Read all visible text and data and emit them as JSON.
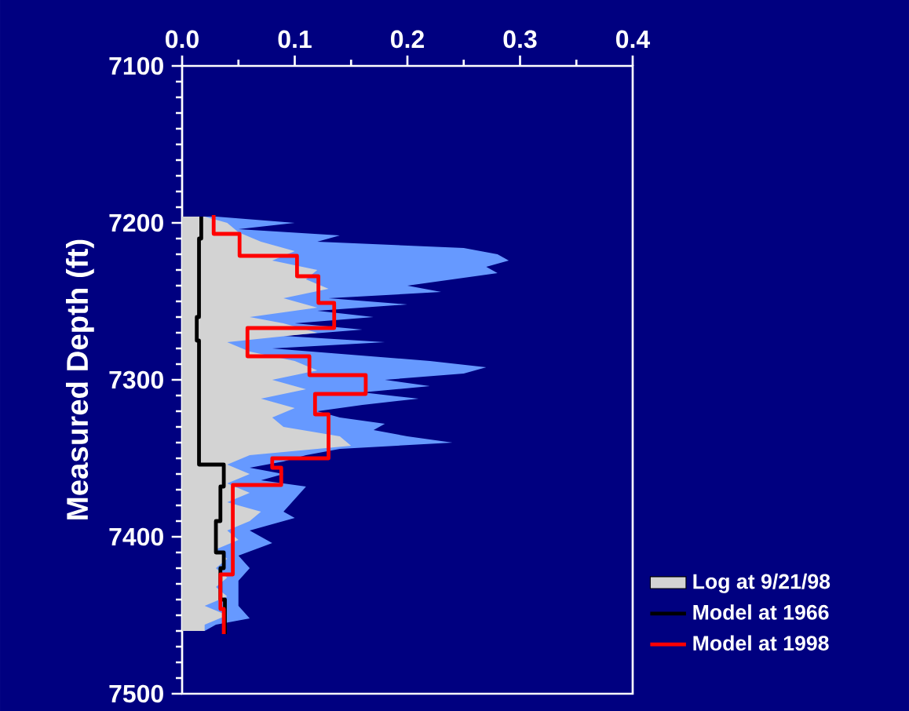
{
  "chart_data": {
    "type": "line",
    "ylabel": "Measured Depth (ft)",
    "xlim": [
      0,
      0.4
    ],
    "xticks": [
      {
        "value": 0,
        "label": "0.0"
      },
      0.1,
      0.2,
      0.3,
      0.4
    ],
    "ylim": [
      7500,
      7100
    ],
    "yticks": [
      7100,
      7200,
      7300,
      7400,
      7500
    ],
    "legend": "bottom right",
    "series": [
      {
        "type": "area",
        "color": "#6699ff",
        "x": [
          0,
          0.03,
          0.1,
          0.05,
          0.14,
          0.12,
          0.25,
          0.28,
          0.29,
          0.27,
          0.28,
          0.24,
          0.2,
          0.23,
          0.13,
          0.2,
          0.12,
          0.17,
          0.1,
          0.16,
          0.09,
          0.18,
          0.08,
          0.15,
          0.22,
          0.27,
          0.25,
          0.18,
          0.22,
          0.16,
          0.21,
          0.16,
          0.12,
          0.14,
          0.18,
          0.17,
          0.2,
          0.24,
          0.14,
          0.11,
          0.09,
          0.06,
          0.09,
          0.07,
          0.11,
          0.1,
          0.09,
          0.1,
          0.06,
          0.08,
          0.05,
          0.06,
          0.05,
          0.05,
          0.06,
          0.03,
          0.02,
          0
        ],
        "values": [
          7196,
          7196,
          7200,
          7204,
          7208,
          7212,
          7216,
          7220,
          7224,
          7228,
          7232,
          7236,
          7240,
          7244,
          7248,
          7252,
          7256,
          7260,
          7264,
          7268,
          7272,
          7276,
          7280,
          7284,
          7288,
          7292,
          7296,
          7300,
          7304,
          7308,
          7312,
          7316,
          7320,
          7324,
          7328,
          7332,
          7336,
          7340,
          7344,
          7348,
          7352,
          7356,
          7360,
          7364,
          7368,
          7376,
          7384,
          7388,
          7396,
          7404,
          7412,
          7420,
          7428,
          7444,
          7452,
          7456,
          7460,
          7460
        ]
      },
      {
        "type": "area",
        "name": "Log at 9/21/98",
        "color": "#d3d3d3",
        "x": [
          0,
          0.02,
          0.04,
          0.05,
          0.07,
          0.1,
          0.08,
          0.12,
          0.11,
          0.13,
          0.09,
          0.12,
          0.06,
          0.09,
          0.12,
          0.04,
          0.06,
          0.1,
          0.12,
          0.08,
          0.11,
          0.07,
          0.1,
          0.08,
          0.09,
          0.14,
          0.15,
          0.06,
          0.04,
          0.06,
          0.04,
          0.06,
          0.04,
          0.07,
          0.06,
          0.04,
          0.05,
          0.03,
          0.04,
          0.03,
          0.04,
          0.03,
          0.04,
          0.02,
          0.04,
          0.02,
          0.02,
          0
        ],
        "values": [
          7196,
          7196,
          7200,
          7206,
          7212,
          7218,
          7224,
          7230,
          7236,
          7242,
          7248,
          7254,
          7260,
          7264,
          7270,
          7276,
          7282,
          7288,
          7294,
          7300,
          7306,
          7312,
          7318,
          7324,
          7330,
          7336,
          7342,
          7348,
          7354,
          7360,
          7366,
          7372,
          7378,
          7384,
          7390,
          7396,
          7402,
          7408,
          7414,
          7420,
          7426,
          7432,
          7438,
          7444,
          7450,
          7456,
          7460,
          7460
        ]
      },
      {
        "name": "Model at 1966",
        "color": "#000000",
        "x": [
          0.017,
          0.017,
          0.015,
          0.015,
          0.013,
          0.013,
          0.015,
          0.015,
          0.037,
          0.037,
          0.034,
          0.034,
          0.03,
          0.03,
          0.037,
          0.037,
          0.034,
          0.034,
          0.038,
          0.038
        ],
        "values": [
          7196,
          7210,
          7210,
          7260,
          7260,
          7275,
          7275,
          7354,
          7354,
          7368,
          7368,
          7390,
          7390,
          7410,
          7410,
          7420,
          7420,
          7440,
          7440,
          7462
        ]
      },
      {
        "name": "Model at 1998",
        "color": "#ff0000",
        "x": [
          0.028,
          0.028,
          0.051,
          0.051,
          0.102,
          0.102,
          0.121,
          0.121,
          0.135,
          0.135,
          0.058,
          0.058,
          0.113,
          0.113,
          0.163,
          0.163,
          0.118,
          0.118,
          0.13,
          0.13,
          0.08,
          0.08,
          0.088,
          0.088,
          0.045,
          0.045,
          0.034,
          0.034,
          0.037,
          0.037
        ],
        "values": [
          7195,
          7207,
          7207,
          7221,
          7221,
          7234,
          7234,
          7251,
          7251,
          7267,
          7267,
          7285,
          7285,
          7297,
          7297,
          7309,
          7309,
          7322,
          7322,
          7350,
          7350,
          7356,
          7356,
          7367,
          7367,
          7424,
          7424,
          7446,
          7446,
          7462
        ]
      }
    ]
  }
}
